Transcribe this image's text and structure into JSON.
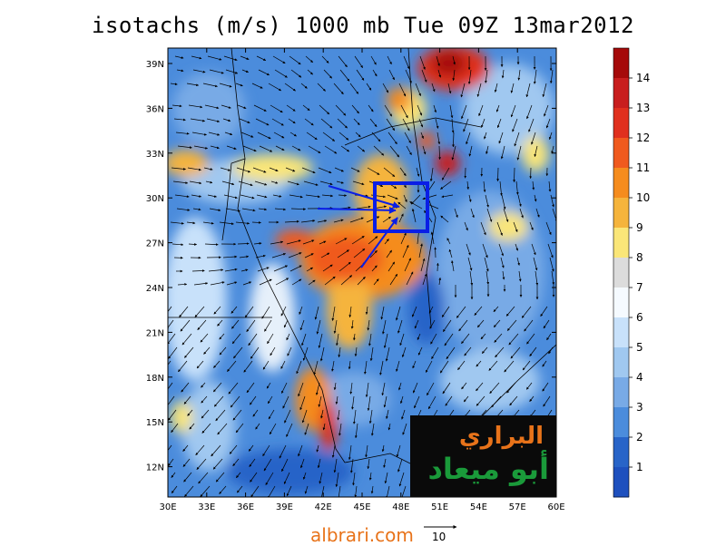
{
  "title": "isotachs (m/s) 1000 mb Tue 09Z 13mar2012",
  "axes": {
    "lon_ticks": [
      "30E",
      "33E",
      "36E",
      "39E",
      "42E",
      "45E",
      "48E",
      "51E",
      "54E",
      "57E",
      "60E"
    ],
    "lat_ticks": [
      "39N",
      "36N",
      "33N",
      "30N",
      "27N",
      "24N",
      "21N",
      "18N",
      "15N",
      "12N"
    ]
  },
  "colorbar": {
    "labels": [
      "14",
      "13",
      "12",
      "11",
      "10",
      "9",
      "8",
      "7",
      "6",
      "5",
      "4",
      "3",
      "2",
      "1"
    ],
    "colors": [
      "#a50a0a",
      "#c81e1e",
      "#e0301e",
      "#f05a1e",
      "#f58c1e",
      "#f5b43c",
      "#fae678",
      "#dcdcdc",
      "#f5faff",
      "#c8e1fa",
      "#a0c8f0",
      "#78aae6",
      "#4b8cdc",
      "#2864c8",
      "#1e50be"
    ]
  },
  "logo": {
    "line1": "البراري",
    "line2": "أبو ميعاد"
  },
  "footer": {
    "site": "albrari.com",
    "ref_vector_label": "10"
  },
  "colors": {
    "highlight_box": "#0a1ee6",
    "footer_text": "#e8731a"
  }
}
